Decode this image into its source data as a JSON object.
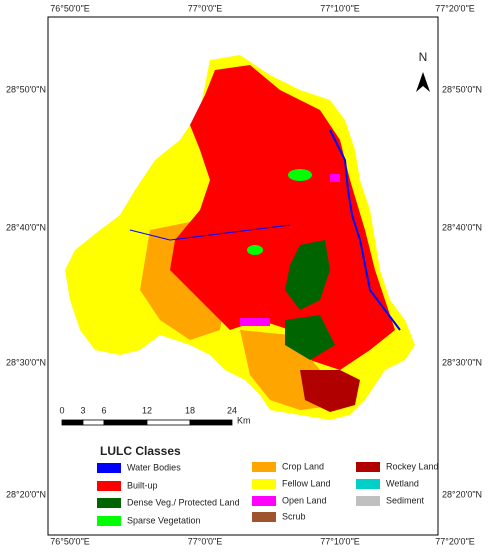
{
  "map": {
    "top_axis_labels": [
      "76°50'0\"E",
      "77°0'0\"E",
      "77°10'0\"E",
      "77°20'0\"E"
    ],
    "bottom_axis_labels": [
      "76°50'0\"E",
      "77°0'0\"E",
      "77°10'0\"E",
      "77°20'0\"E"
    ],
    "left_axis_labels": [
      "28°50'0\"N",
      "28°40'0\"N",
      "28°30'0\"N",
      "28°20'0\"N"
    ],
    "right_axis_labels": [
      "28°50'0\"N",
      "28°40'0\"N",
      "28°30'0\"N",
      "28°20'0\"N"
    ],
    "north_label": "N",
    "scale_bar": {
      "labels": [
        "0",
        "3",
        "6",
        "12",
        "18",
        "24"
      ],
      "unit": "Km"
    },
    "legend": {
      "title": "LULC Classes",
      "items": [
        {
          "label": "Water Bodies",
          "color": "#0000ff"
        },
        {
          "label": "Built-up",
          "color": "#ff0000"
        },
        {
          "label": "Dense Veg./ Protected Land",
          "color": "#006400"
        },
        {
          "label": "Sparse Vegetation",
          "color": "#00ff00"
        },
        {
          "label": "Crop Land",
          "color": "#ffa500"
        },
        {
          "label": "Fellow Land",
          "color": "#ffff00"
        },
        {
          "label": "Open Land",
          "color": "#ff00ff"
        },
        {
          "label": "Scrub",
          "color": "#a0522d"
        },
        {
          "label": "Rockey Land",
          "color": "#b00000"
        },
        {
          "label": "Wetland",
          "color": "#00d0c8"
        },
        {
          "label": "Sediment",
          "color": "#c0c0c0"
        }
      ]
    }
  }
}
